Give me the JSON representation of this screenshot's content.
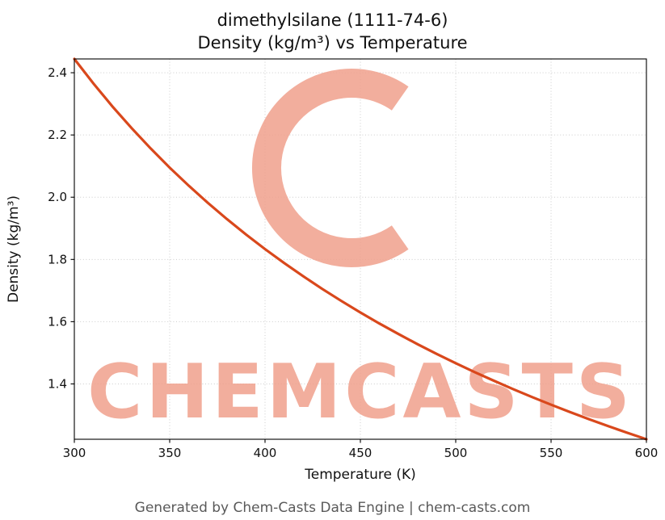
{
  "title": {
    "line1": "dimethylsilane (1111-74-6)",
    "line2": "Density (kg/m³) vs Temperature"
  },
  "footer": "Generated by Chem-Casts Data Engine | chem-casts.com",
  "watermark": {
    "text": "CHEMCASTS",
    "color": "#f0a08c"
  },
  "chart_data": {
    "type": "line",
    "title": "dimethylsilane (1111-74-6) — Density (kg/m³) vs Temperature",
    "xlabel": "Temperature (K)",
    "ylabel": "Density (kg/m³)",
    "xlim": [
      300,
      600
    ],
    "ylim": [
      1.2222,
      2.4443
    ],
    "xticks": [
      300,
      350,
      400,
      450,
      500,
      550,
      600
    ],
    "xtick_labels": [
      "300",
      "350",
      "400",
      "450",
      "500",
      "550",
      "600"
    ],
    "yticks": [
      1.4,
      1.6,
      1.8,
      2.0,
      2.2,
      2.4
    ],
    "ytick_labels": [
      "1.4",
      "1.6",
      "1.8",
      "2.0",
      "2.2",
      "2.4"
    ],
    "grid": true,
    "legend": "none",
    "line_color": "#d9481c",
    "series": [
      {
        "name": "density",
        "x": [
          300,
          310,
          320,
          330,
          340,
          350,
          360,
          370,
          380,
          390,
          400,
          410,
          420,
          430,
          440,
          450,
          460,
          470,
          480,
          490,
          500,
          510,
          520,
          530,
          540,
          550,
          560,
          570,
          580,
          590,
          600
        ],
        "y": [
          2.4443,
          2.3655,
          2.2916,
          2.2221,
          2.1568,
          2.0951,
          2.0369,
          1.9819,
          1.9297,
          1.8803,
          1.8333,
          1.7885,
          1.746,
          1.7053,
          1.6666,
          1.6296,
          1.5941,
          1.5602,
          1.5277,
          1.4965,
          1.4666,
          1.4378,
          1.4102,
          1.3836,
          1.358,
          1.3333,
          1.3095,
          1.2865,
          1.2643,
          1.2429,
          1.2222
        ]
      }
    ]
  }
}
